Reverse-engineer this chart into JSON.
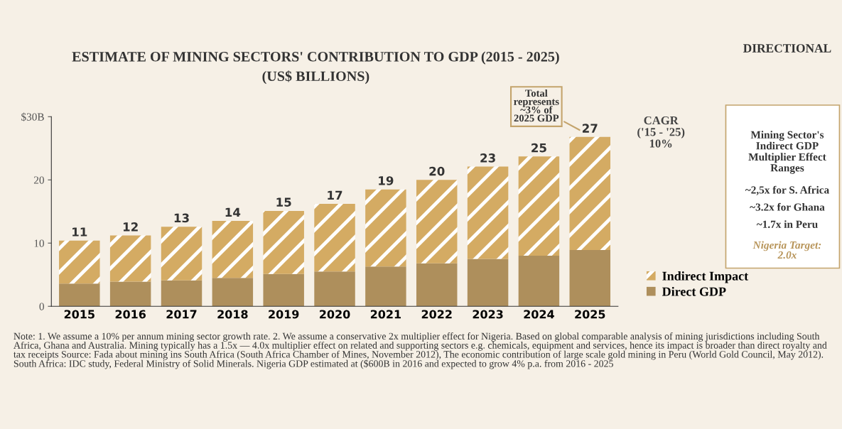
{
  "chart_data": {
    "type": "bar",
    "title": "ESTIMATE OF MINING SECTORS' CONTRIBUTION TO GDP (2015 - 2025)",
    "subtitle": "(US$ BILLIONS)",
    "categories": [
      "2015",
      "2016",
      "2017",
      "2018",
      "2019",
      "2020",
      "2021",
      "2022",
      "2023",
      "2024",
      "2025"
    ],
    "stacked": true,
    "series": [
      {
        "name": "Direct GDP",
        "color": "#ae8f5c",
        "values": [
          3.6,
          3.9,
          4.1,
          4.5,
          5.1,
          5.5,
          6.3,
          6.8,
          7.5,
          8.0,
          8.9
        ]
      },
      {
        "name": "Indirect Impact",
        "color": "#d4ab63",
        "values": [
          6.8,
          7.3,
          8.5,
          9.0,
          10.0,
          10.7,
          12.2,
          13.2,
          14.6,
          15.7,
          17.9
        ]
      }
    ],
    "totals": [
      "11",
      "12",
      "13",
      "14",
      "15",
      "17",
      "19",
      "20",
      "23",
      "25",
      "27"
    ],
    "ylim": [
      0,
      30
    ],
    "yticks": [
      0,
      10,
      20,
      {
        "value": 30,
        "label": "$30B"
      }
    ],
    "grid": false,
    "legend": "bottom right",
    "annotations": [
      "Total represents ~3% of 2025 GDP",
      "CAGR ('15 - '25) 10%",
      "DIRECTIONAL",
      "Mining Sector's Indirect GDP Multiplier Effect Ranges",
      "~2,5x for S. Africa",
      "~3.2x for Ghana",
      "~1.7x in Peru",
      "Nigeria Target: 2.0x",
      "Note: 1. We assume a 10% per annum mining sector growth rate. 2. We assume a conservative 2x multiplier effect for Nigeria. Based on global comparable analysis of mining jurisdictions including South Africa, Ghana and Australia. Mining typically has a 1.5x — 4.0x multiplier effect on related and supporting sectors e.g. chemicals, equipment and services, hence its impact is broader than direct royalty and tax receipts Source: Fada about mining ins South Africa (South Africa Chamber of Mines, November 2012), The economic contribution of large scale gold mining in Peru (World Gold Council, May 2012). South Africa: IDC study, Federal Ministry of Solid Minerals. Nigeria GDP estimated at ($600B in 2016 and expected to grow 4% p.a. from 2016 - 2025"
    ]
  }
}
